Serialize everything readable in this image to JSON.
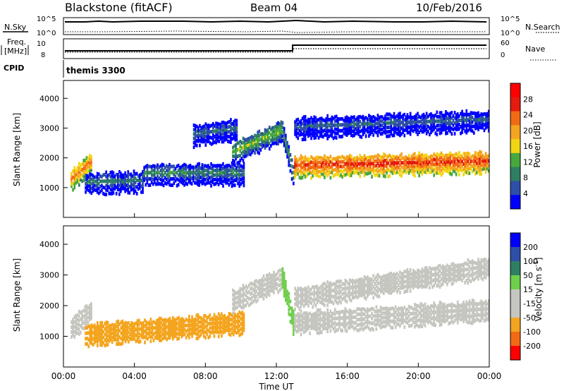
{
  "header": {
    "station": "Blackstone (fitACF)",
    "beam": "Beam 04",
    "date": "10/Feb/2016"
  },
  "top_panels": {
    "nsky_label": "N.Sky",
    "nsky_ticks": [
      "10^5",
      "10^0"
    ],
    "nsearch_label": "N.Search",
    "nsearch_ticks": [
      "10^5",
      "10^0"
    ],
    "freq_label_1": "Freq.",
    "freq_label_2": "[MHz]",
    "freq_ticks": [
      "10",
      "8"
    ],
    "nave_label": "Nave",
    "nave_ticks": [
      "60",
      "0"
    ],
    "cpid_label": "CPID",
    "cpid_value": "themis 3300"
  },
  "colors": {
    "power_scale": [
      "#0000ff",
      "#2e4fa8",
      "#2f7f62",
      "#46a83d",
      "#f1d512",
      "#f4a51f",
      "#f26b14",
      "#e51a10",
      "#ff0000"
    ],
    "velocity_scale": [
      "#ff0000",
      "#f26b14",
      "#f4a51f",
      "#c6c6c0",
      "#c6c6c0",
      "#6ecf4a",
      "#2f7f62",
      "#2e4fa8",
      "#0000ff"
    ]
  },
  "chart_data": [
    {
      "type": "heatmap",
      "title": "",
      "ylabel": "Slant Range [km]",
      "ylim": [
        0,
        4600
      ],
      "yticks": [
        "4000",
        "3000",
        "2000",
        "1000"
      ],
      "xlim": [
        "00:00",
        "24:00"
      ],
      "colorbar": {
        "label": "Power [dB]",
        "ticks": [
          "28",
          "24",
          "20",
          "16",
          "12",
          "8",
          "4"
        ],
        "range": [
          0,
          30
        ]
      },
      "features": [
        {
          "start_ut": 0.4,
          "end_ut": 1.6,
          "range_km_start": 1300,
          "range_km_end": 1900,
          "power_db": 22
        },
        {
          "start_ut": 1.2,
          "end_ut": 4.5,
          "range_km_start": 1200,
          "range_km_end": 1250,
          "power_db": 9
        },
        {
          "start_ut": 4.5,
          "end_ut": 10.2,
          "range_km_start": 1500,
          "range_km_end": 1500,
          "power_db": 10
        },
        {
          "start_ut": 7.3,
          "end_ut": 9.8,
          "range_km_start": 2800,
          "range_km_end": 3000,
          "power_db": 8
        },
        {
          "start_ut": 9.5,
          "end_ut": 12.3,
          "range_km_start": 2200,
          "range_km_end": 2950,
          "power_db": 14
        },
        {
          "start_ut": 12.3,
          "end_ut": 13.0,
          "range_km_start": 2950,
          "range_km_end": 1300,
          "power_db": 12
        },
        {
          "start_ut": 13.0,
          "end_ut": 24.0,
          "range_km_start": 1750,
          "range_km_end": 1900,
          "power_db": 26
        },
        {
          "start_ut": 13.0,
          "end_ut": 24.0,
          "range_km_start": 3050,
          "range_km_end": 3300,
          "power_db": 7
        }
      ]
    },
    {
      "type": "heatmap",
      "title": "",
      "ylabel": "Slant Range [km]",
      "xlabel": "Time UT",
      "ylim": [
        0,
        4600
      ],
      "yticks": [
        "4000",
        "3000",
        "2000",
        "1000"
      ],
      "xlim": [
        "00:00",
        "24:00"
      ],
      "xticks": [
        "00:00",
        "04:00",
        "08:00",
        "12:00",
        "16:00",
        "20:00",
        "00:00"
      ],
      "colorbar": {
        "label": "Velocity [m s^-1]",
        "ticks": [
          "200",
          "100",
          "50",
          "15",
          "-15",
          "-50",
          "-100",
          "-200"
        ],
        "range": [
          -250,
          250
        ]
      },
      "features": [
        {
          "start_ut": 0.4,
          "end_ut": 1.6,
          "range_km_start": 1300,
          "range_km_end": 1900,
          "velocity": 0
        },
        {
          "start_ut": 1.2,
          "end_ut": 10.2,
          "range_km_start": 1100,
          "range_km_end": 1500,
          "velocity": -60
        },
        {
          "start_ut": 9.5,
          "end_ut": 12.3,
          "range_km_start": 2200,
          "range_km_end": 2950,
          "velocity": 0
        },
        {
          "start_ut": 12.3,
          "end_ut": 13.0,
          "range_km_start": 2950,
          "range_km_end": 1300,
          "velocity": 30
        },
        {
          "start_ut": 13.0,
          "end_ut": 24.0,
          "range_km_start": 1500,
          "range_km_end": 1900,
          "velocity": 0
        },
        {
          "start_ut": 13.0,
          "end_ut": 24.0,
          "range_km_start": 2300,
          "range_km_end": 3300,
          "velocity": 0
        }
      ]
    }
  ]
}
